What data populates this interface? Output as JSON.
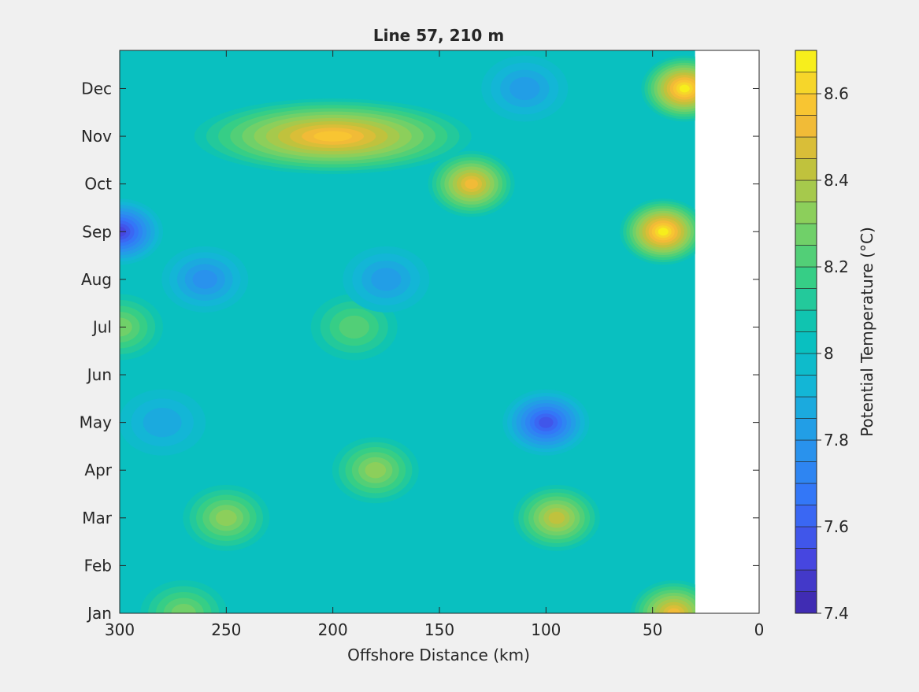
{
  "window": {
    "background": "#f0f0f0"
  },
  "chart_data": {
    "type": "contourf",
    "title": "Line 57, 210 m",
    "xlabel": "Offshore Distance (km)",
    "ylabel": "",
    "xlim": [
      300,
      0
    ],
    "x_direction": "reversed",
    "x_ticks": [
      300,
      250,
      200,
      150,
      100,
      50,
      0
    ],
    "y_ticks": [
      "Jan",
      "Feb",
      "Mar",
      "Apr",
      "May",
      "Jun",
      "Jul",
      "Aug",
      "Sep",
      "Oct",
      "Nov",
      "Dec"
    ],
    "data_extent_x": [
      300,
      30
    ],
    "no_data_region_x": [
      30,
      0
    ],
    "grid": false,
    "colorbar": {
      "label": "Potential Temperature (°C)",
      "clim": [
        7.4,
        8.7
      ],
      "step": 0.05,
      "ticks": [
        7.4,
        7.6,
        7.8,
        8,
        8.2,
        8.4,
        8.6
      ],
      "colormap": "parula",
      "location": "right"
    },
    "features": [
      {
        "x": 200,
        "month": "Nov",
        "value": 8.55,
        "label": "warm band",
        "extent_km": [
          250,
          120
        ]
      },
      {
        "x": 135,
        "month": "Oct",
        "value": 8.5
      },
      {
        "x": 45,
        "month": "Sep",
        "value": 8.65
      },
      {
        "x": 35,
        "month": "Dec",
        "value": 8.65
      },
      {
        "x": 40,
        "month": "Jan",
        "value": 8.5
      },
      {
        "x": 95,
        "month": "Mar",
        "value": 8.4
      },
      {
        "x": 180,
        "month": "Apr",
        "value": 8.3
      },
      {
        "x": 190,
        "month": "Jul",
        "value": 8.2
      },
      {
        "x": 300,
        "month": "Sep",
        "value": 7.5
      },
      {
        "x": 260,
        "month": "Aug",
        "value": 7.75
      },
      {
        "x": 100,
        "month": "May",
        "value": 7.55
      },
      {
        "x": 175,
        "month": "Aug",
        "value": 7.8
      },
      {
        "x": 110,
        "month": "Dec",
        "value": 7.8
      },
      {
        "x": 280,
        "month": "May",
        "value": 7.85
      },
      {
        "x": 300,
        "month": "Jul",
        "value": 8.25
      },
      {
        "x": 270,
        "month": "Jan",
        "value": 8.25
      },
      {
        "x": 250,
        "month": "Mar",
        "value": 8.3
      }
    ]
  }
}
